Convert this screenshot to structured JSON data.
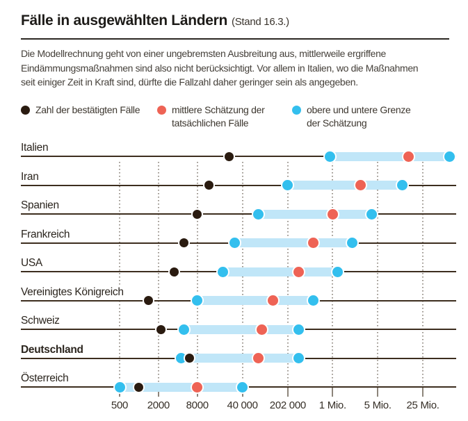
{
  "title": {
    "main": "Fälle in ausgewählten Ländern",
    "suffix": "(Stand 16.3.)"
  },
  "intro_lines": [
    "Die Modellrechnung geht von einer ungebremsten Ausbreitung aus, mittlerweile ergriffene",
    "Eindämmungsmaßnahmen sind also nicht berücksichtigt. Vor allem in Italien, wo die Maßnahmen",
    "seit einiger Zeit in Kraft sind, dürfte die Fallzahl daher geringer sein als angegeben."
  ],
  "legend": [
    {
      "label_lines": [
        "Zahl der bestätigten Fälle"
      ],
      "color": "#2a1b10"
    },
    {
      "label_lines": [
        "mittlere Schätzung der",
        "tatsächlichen Fälle"
      ],
      "color": "#ee6355"
    },
    {
      "label_lines": [
        "obere und untere Grenze",
        "der Schätzung"
      ],
      "color": "#33bfee"
    }
  ],
  "colors": {
    "confirmed_dot": "#2a1b10",
    "mean_dot": "#ee6355",
    "bound_dot": "#33bfee",
    "band": "#c0e6f8",
    "row_line": "#3c2d1e",
    "gridline": "#98928a",
    "tick": "#8d857b"
  },
  "chart_data": {
    "type": "scatter",
    "subtype": "horizontal-log-range-dot-plot",
    "x_scale": "log",
    "grid": "vertical-dotted",
    "x_ticks": [
      {
        "label": "500",
        "value": 500
      },
      {
        "label": "2000",
        "value": 2000
      },
      {
        "label": "8000",
        "value": 8000
      },
      {
        "label": "40 000",
        "value": 40000
      },
      {
        "label": "202 000",
        "value": 202000
      },
      {
        "label": "1 Mio.",
        "value": 1000000
      },
      {
        "label": "5 Mio.",
        "value": 5000000
      },
      {
        "label": "25 Mio.",
        "value": 25000000
      }
    ],
    "rows": [
      {
        "name": "Italien",
        "bold": false,
        "confirmed": 25000,
        "estimate_lower": 900000,
        "estimate_mean": 15000000,
        "estimate_upper": 65000000
      },
      {
        "name": "Iran",
        "bold": false,
        "confirmed": 12000,
        "estimate_lower": 200000,
        "estimate_mean": 2700000,
        "estimate_upper": 12000000
      },
      {
        "name": "Spanien",
        "bold": false,
        "confirmed": 8000,
        "estimate_lower": 70000,
        "estimate_mean": 1000000,
        "estimate_upper": 4000000
      },
      {
        "name": "Frankreich",
        "bold": false,
        "confirmed": 5000,
        "estimate_lower": 30000,
        "estimate_mean": 500000,
        "estimate_upper": 2000000
      },
      {
        "name": "USA",
        "bold": false,
        "confirmed": 3500,
        "estimate_lower": 20000,
        "estimate_mean": 300000,
        "estimate_upper": 1200000
      },
      {
        "name": "Vereinigtes Königreich",
        "bold": false,
        "confirmed": 1400,
        "estimate_lower": 8000,
        "estimate_mean": 120000,
        "estimate_upper": 500000
      },
      {
        "name": "Schweiz",
        "bold": false,
        "confirmed": 2200,
        "estimate_lower": 5000,
        "estimate_mean": 80000,
        "estimate_upper": 300000
      },
      {
        "name": "Deutschland",
        "bold": true,
        "confirmed": 6000,
        "estimate_lower": 4500,
        "estimate_mean": 70000,
        "estimate_upper": 300000
      },
      {
        "name": "Österreich",
        "bold": false,
        "confirmed": 1000,
        "estimate_lower": 500,
        "estimate_mean": 8000,
        "estimate_upper": 40000
      }
    ]
  },
  "layout_note": "log axis from 500 upwards; estimate band spans lower to upper bound"
}
